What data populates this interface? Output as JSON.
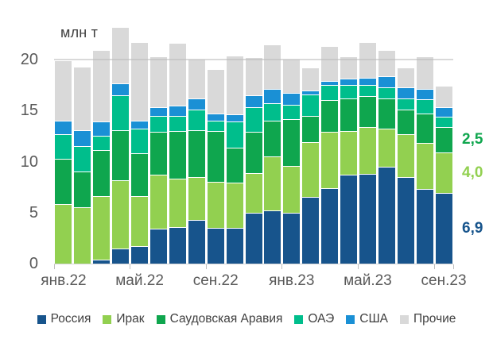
{
  "chart_data": {
    "type": "bar",
    "stacked": true,
    "units": "млн т",
    "categories": [
      "янв.22",
      "фев.22",
      "мар.22",
      "апр.22",
      "май.22",
      "июн.22",
      "июл.22",
      "авг.22",
      "сен.22",
      "окт.22",
      "ноя.22",
      "дек.22",
      "янв.23",
      "фев.23",
      "мар.23",
      "апр.23",
      "май.23",
      "июн.23",
      "июл.23",
      "авг.23",
      "сен.23"
    ],
    "x_axis_labels_shown": [
      "янв.22",
      "май.22",
      "сен.22",
      "янв.23",
      "май.23",
      "сен.23"
    ],
    "y_ticks": [
      0,
      5,
      10,
      15,
      20
    ],
    "ylim": [
      0,
      24
    ],
    "gridline_y": 20,
    "grid": "single-line-at-20",
    "legend_position": "bottom",
    "axis_text_color": "#595959",
    "series": [
      {
        "name": "Россия",
        "slug": "russia",
        "color": "#17548C",
        "values": [
          0,
          0,
          0.4,
          1.5,
          1.7,
          3.4,
          3.6,
          4.3,
          3.5,
          3.5,
          5.0,
          5.2,
          5.0,
          6.5,
          7.4,
          8.7,
          8.8,
          9.5,
          8.5,
          7.3,
          6.9
        ]
      },
      {
        "name": "Ирак",
        "slug": "iraq",
        "color": "#92D050",
        "values": [
          5.8,
          5.5,
          6.2,
          6.7,
          4.9,
          5.3,
          4.7,
          4.2,
          4.5,
          4.4,
          3.9,
          5.3,
          4.6,
          5.4,
          5.5,
          4.3,
          4.6,
          3.7,
          4.2,
          4.5,
          4.0
        ]
      },
      {
        "name": "Саудовская Аравия",
        "slug": "saudi-arabia",
        "color": "#0FA64E",
        "values": [
          4.5,
          3.5,
          4.5,
          4.9,
          4.2,
          4.2,
          4.7,
          4.6,
          5.0,
          3.5,
          4.0,
          3.5,
          4.6,
          2.6,
          3.1,
          3.2,
          3.0,
          3.0,
          2.4,
          2.9,
          2.5
        ]
      },
      {
        "name": "ОАЭ",
        "slug": "uae",
        "color": "#00BE8C",
        "values": [
          2.4,
          2.5,
          1.4,
          3.4,
          2.4,
          1.6,
          1.5,
          2.0,
          1.0,
          2.5,
          2.4,
          1.7,
          1.4,
          2.1,
          1.5,
          1.3,
          1.1,
          1.1,
          1.1,
          1.4,
          1.0
        ]
      },
      {
        "name": "США",
        "slug": "usa",
        "color": "#1A90D5",
        "values": [
          1.3,
          1.6,
          1.4,
          1.2,
          0.8,
          0.8,
          1.0,
          1.1,
          0.7,
          0.7,
          1.2,
          1.4,
          1.1,
          0.4,
          0.4,
          0.6,
          0.7,
          1.1,
          1.1,
          1.0,
          0.9
        ]
      },
      {
        "name": "Прочие",
        "slug": "others",
        "color": "#D9D9D9",
        "values": [
          5.9,
          6.2,
          7.0,
          5.5,
          7.7,
          5.0,
          6.1,
          3.9,
          4.4,
          5.8,
          3.7,
          4.4,
          3.4,
          2.2,
          3.4,
          2.2,
          3.5,
          2.5,
          1.9,
          3.2,
          2.1
        ]
      }
    ],
    "annotations": [
      {
        "text": "2,5",
        "series": "Саудовская Аравия"
      },
      {
        "text": "4,0",
        "series": "Ирак"
      },
      {
        "text": "6,9",
        "series": "Россия"
      }
    ],
    "legend": [
      "Россия",
      "Ирак",
      "Саудовская Аравия",
      "ОАЭ",
      "США",
      "Прочие"
    ]
  }
}
